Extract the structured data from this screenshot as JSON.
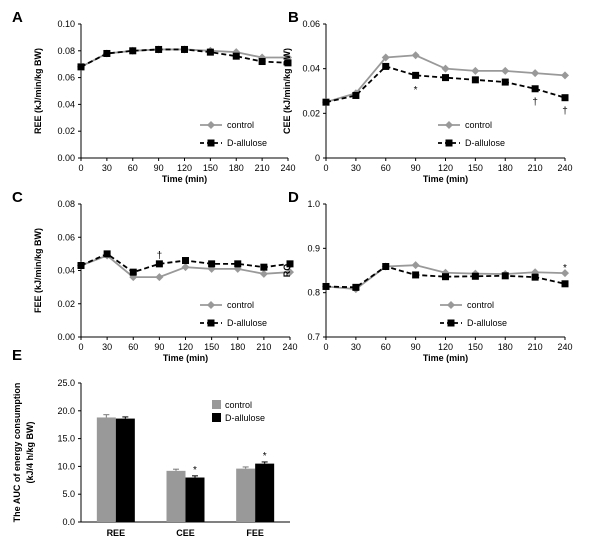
{
  "colors": {
    "control": "#999999",
    "treated": "#000000",
    "axis": "#000000"
  },
  "chart_data": [
    {
      "id": "A",
      "type": "line",
      "letter": "A",
      "x": [
        0,
        30,
        60,
        90,
        120,
        150,
        180,
        210,
        240
      ],
      "xticks": [
        "0",
        "30",
        "60",
        "90",
        "120",
        "150",
        "180",
        "210",
        "240"
      ],
      "xlabel": "Time (min)",
      "ylabel": "REE (kJ/min/kg BW)",
      "ylim": [
        0,
        0.1
      ],
      "yticks": [
        "0.00",
        "0.02",
        "0.04",
        "0.06",
        "0.08",
        "0.10"
      ],
      "legend_position": "bottom-right",
      "series": [
        {
          "name": "control",
          "values": [
            0.068,
            0.078,
            0.08,
            0.081,
            0.081,
            0.08,
            0.079,
            0.075,
            0.075
          ]
        },
        {
          "name": "D-allulose",
          "values": [
            0.068,
            0.078,
            0.08,
            0.081,
            0.081,
            0.079,
            0.076,
            0.072,
            0.071
          ]
        }
      ],
      "annotations": []
    },
    {
      "id": "B",
      "type": "line",
      "letter": "B",
      "x": [
        0,
        30,
        60,
        90,
        120,
        150,
        180,
        210,
        240
      ],
      "xticks": [
        "0",
        "30",
        "60",
        "90",
        "120",
        "150",
        "180",
        "210",
        "240"
      ],
      "xlabel": "Time (min)",
      "ylabel": "CEE (kJ/min/kg BW)",
      "ylim": [
        0,
        0.06
      ],
      "yticks": [
        "0",
        "0.02",
        "0.04",
        "0.06"
      ],
      "legend_position": "bottom-right",
      "series": [
        {
          "name": "control",
          "values": [
            0.025,
            0.029,
            0.045,
            0.046,
            0.04,
            0.039,
            0.039,
            0.038,
            0.037
          ]
        },
        {
          "name": "D-allulose",
          "values": [
            0.025,
            0.028,
            0.041,
            0.037,
            0.036,
            0.035,
            0.034,
            0.031,
            0.027
          ]
        }
      ],
      "annotations": [
        {
          "x": 90,
          "y": 0.031,
          "text": "*"
        },
        {
          "x": 210,
          "y": 0.0255,
          "text": "†"
        },
        {
          "x": 240,
          "y": 0.0215,
          "text": "†"
        }
      ]
    },
    {
      "id": "C",
      "type": "line",
      "letter": "C",
      "x": [
        0,
        30,
        60,
        90,
        120,
        150,
        180,
        210,
        240
      ],
      "xticks": [
        "0",
        "30",
        "60",
        "90",
        "120",
        "150",
        "180",
        "210",
        "240"
      ],
      "xlabel": "Time (min)",
      "ylabel": "FEE (kJ/min/kg BW)",
      "ylim": [
        0,
        0.08
      ],
      "yticks": [
        "0.00",
        "0.02",
        "0.04",
        "0.06",
        "0.08"
      ],
      "legend_position": "bottom-right",
      "series": [
        {
          "name": "control",
          "values": [
            0.043,
            0.049,
            0.036,
            0.036,
            0.042,
            0.041,
            0.041,
            0.038,
            0.039
          ]
        },
        {
          "name": "D-allulose",
          "values": [
            0.043,
            0.05,
            0.039,
            0.044,
            0.046,
            0.044,
            0.044,
            0.042,
            0.044
          ]
        }
      ],
      "annotations": [
        {
          "x": 90,
          "y": 0.0495,
          "text": "†"
        }
      ]
    },
    {
      "id": "D",
      "type": "line",
      "letter": "D",
      "x": [
        0,
        30,
        60,
        90,
        120,
        150,
        180,
        210,
        240
      ],
      "xticks": [
        "0",
        "30",
        "60",
        "90",
        "120",
        "150",
        "180",
        "210",
        "240"
      ],
      "xlabel": "Time (min)",
      "ylabel": "RQ",
      "ylim": [
        0.7,
        1.0
      ],
      "yticks": [
        "0.7",
        "0.8",
        "0.9",
        "1.0"
      ],
      "legend_position": "bottom-right",
      "series": [
        {
          "name": "control",
          "values": [
            0.814,
            0.808,
            0.859,
            0.862,
            0.845,
            0.843,
            0.842,
            0.846,
            0.844
          ]
        },
        {
          "name": "D-allulose",
          "values": [
            0.814,
            0.812,
            0.859,
            0.84,
            0.836,
            0.837,
            0.838,
            0.835,
            0.82
          ]
        }
      ],
      "annotations": [
        {
          "x": 240,
          "y": 0.858,
          "text": "*"
        }
      ]
    },
    {
      "id": "E",
      "type": "bar",
      "letter": "E",
      "categories": [
        "REE",
        "CEE",
        "FEE"
      ],
      "ylabel_lines": [
        "The AUC of energy consumption",
        "(kJ/4 h/kg BW)"
      ],
      "ylim": [
        0,
        25
      ],
      "yticks": [
        "0.0",
        "5.0",
        "10.0",
        "15.0",
        "20.0",
        "25.0"
      ],
      "legend_position": "top-right",
      "series": [
        {
          "name": "control",
          "values": [
            18.8,
            9.2,
            9.6
          ],
          "errors": [
            0.5,
            0.3,
            0.3
          ]
        },
        {
          "name": "D-allulose",
          "values": [
            18.6,
            8.0,
            10.5
          ],
          "errors": [
            0.3,
            0.3,
            0.3
          ]
        }
      ],
      "annotations": [
        {
          "category": "CEE",
          "series": "D-allulose",
          "text": "*"
        },
        {
          "category": "FEE",
          "series": "D-allulose",
          "text": "*"
        }
      ]
    }
  ]
}
